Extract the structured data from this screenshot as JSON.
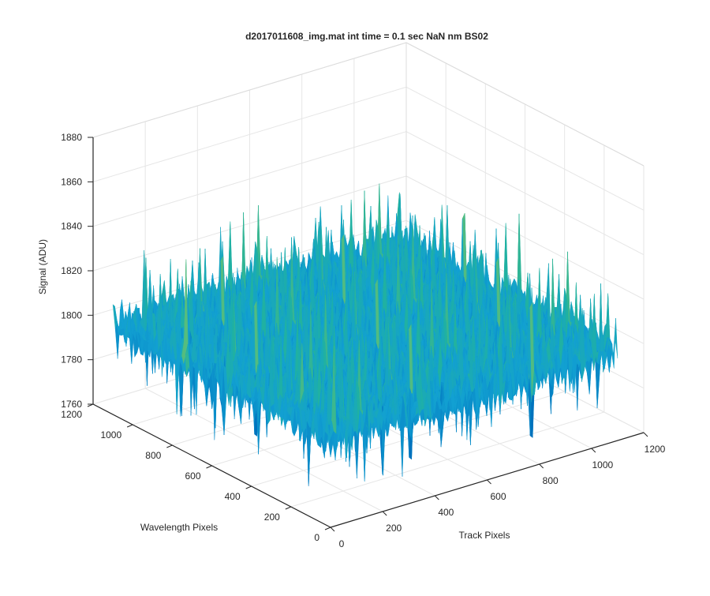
{
  "chart_data": {
    "type": "surface",
    "title": "d2017011608_img.mat int time = 0.1 sec  NaN nm BS02",
    "xlabel": "Track Pixels",
    "ylabel": "Wavelength Pixels",
    "zlabel": "Signal (ADU)",
    "xlim": [
      0,
      1200
    ],
    "ylim": [
      0,
      1200
    ],
    "zlim": [
      1760,
      1880
    ],
    "x_ticks": [
      "0",
      "200",
      "400",
      "600",
      "800",
      "1000",
      "1200"
    ],
    "y_ticks": [
      "0",
      "200",
      "400",
      "600",
      "800",
      "1000",
      "1200"
    ],
    "z_ticks": [
      "1760",
      "1780",
      "1800",
      "1820",
      "1840",
      "1860",
      "1880"
    ],
    "grid": true,
    "colormap": "parula",
    "colors": {
      "low": "#0072bd",
      "mid": "#21b2b0",
      "high": "#c9d353",
      "peak": "#f5e23a"
    },
    "surface_summary": {
      "mean": 1800,
      "min": 1760,
      "max": 1870,
      "data_extent": [
        0,
        1100
      ]
    }
  }
}
